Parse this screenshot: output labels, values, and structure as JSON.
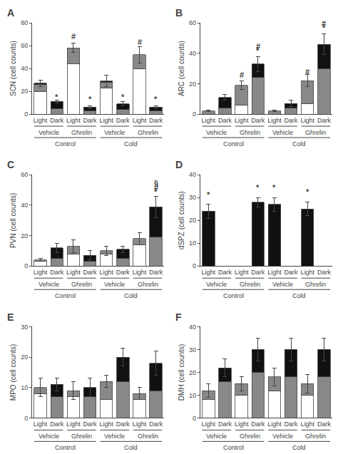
{
  "chart_data": [
    {
      "type": "bar",
      "stacked": true,
      "title": "A",
      "ylabel": "SCN (cell counts)",
      "categories": [
        "Light",
        "Dark",
        "Light",
        "Dark",
        "Light",
        "Dark",
        "Light",
        "Dark"
      ],
      "series": [
        {
          "color": "#ffffff",
          "values": [
            20,
            0,
            44,
            0,
            23,
            0,
            40,
            0
          ]
        },
        {
          "color": "#888888",
          "values": [
            6,
            5,
            14,
            3,
            5,
            4,
            12,
            3
          ]
        },
        {
          "color": "#111111",
          "values": [
            1,
            6,
            0,
            3,
            1,
            5,
            0,
            3
          ]
        }
      ],
      "errors": [
        3,
        1.5,
        4,
        1,
        5,
        2,
        7,
        1
      ],
      "ylim": [
        0,
        80
      ],
      "yticks": [
        0,
        20,
        40,
        60,
        80
      ],
      "grid": false,
      "annotations": [
        {
          "text": "#",
          "x": 2,
          "y": 63
        },
        {
          "text": "*",
          "x": 1,
          "y": 10
        },
        {
          "text": "*",
          "x": 3,
          "y": 8
        },
        {
          "text": "#",
          "x": 6,
          "y": 58
        },
        {
          "text": "*",
          "x": 5,
          "y": 10
        },
        {
          "text": "*",
          "x": 7,
          "y": 8
        },
        {
          "text": "Vehicle",
          "x": [
            0,
            1
          ]
        },
        {
          "text": "Ghrelin",
          "x": [
            2,
            3
          ]
        },
        {
          "text": "Vehicle",
          "x": [
            4,
            5
          ]
        },
        {
          "text": "Ghrelin",
          "x": [
            6,
            7
          ]
        },
        {
          "text": "Control",
          "x": [
            0,
            3
          ]
        },
        {
          "text": "Cold",
          "x": [
            4,
            7
          ]
        }
      ]
    },
    {
      "type": "bar",
      "stacked": true,
      "title": "B",
      "ylabel": "ARC (cell counts)",
      "categories": [
        "Light",
        "Dark",
        "Light",
        "Dark",
        "Light",
        "Dark",
        "Light",
        "Dark"
      ],
      "series": [
        {
          "color": "#ffffff",
          "values": [
            0,
            0,
            6,
            0,
            0,
            0,
            7,
            0
          ]
        },
        {
          "color": "#888888",
          "values": [
            2,
            4,
            13,
            24,
            2,
            4,
            15,
            30
          ]
        },
        {
          "color": "#111111",
          "values": [
            0,
            7,
            0,
            9,
            0,
            3,
            0,
            16
          ]
        }
      ],
      "errors": [
        0.5,
        2,
        3,
        5,
        0.5,
        2,
        4,
        7
      ],
      "ylim": [
        0,
        60
      ],
      "yticks": [
        0,
        20,
        40,
        60
      ],
      "grid": false,
      "annotations": [
        {
          "text": "#",
          "x": 2,
          "y": 22
        },
        {
          "text": "#",
          "x": 3,
          "y": 41
        },
        {
          "text": "*",
          "x": 3,
          "y": 38
        },
        {
          "text": "#",
          "x": 6,
          "y": 24
        },
        {
          "text": "#",
          "x": 7,
          "y": 56
        },
        {
          "text": "*",
          "x": 7,
          "y": 53
        },
        {
          "text": "Vehicle",
          "x": [
            0,
            1
          ]
        },
        {
          "text": "Ghrelin",
          "x": [
            2,
            3
          ]
        },
        {
          "text": "Vehicle",
          "x": [
            4,
            5
          ]
        },
        {
          "text": "Ghrelin",
          "x": [
            6,
            7
          ]
        },
        {
          "text": "Control",
          "x": [
            0,
            3
          ]
        },
        {
          "text": "Cold",
          "x": [
            4,
            7
          ]
        }
      ]
    },
    {
      "type": "bar",
      "stacked": true,
      "title": "C",
      "ylabel": "PVN (cell counts)",
      "categories": [
        "Light",
        "Dark",
        "Light",
        "Dark",
        "Light",
        "Dark",
        "Light",
        "Dark"
      ],
      "series": [
        {
          "color": "#ffffff",
          "values": [
            3,
            0,
            8,
            0,
            8,
            0,
            14,
            0
          ]
        },
        {
          "color": "#888888",
          "values": [
            1,
            5,
            5,
            3,
            2,
            5,
            4,
            19
          ]
        },
        {
          "color": "#111111",
          "values": [
            0,
            7,
            0,
            4,
            0,
            6,
            0,
            20
          ]
        }
      ],
      "errors": [
        1,
        3,
        4,
        3,
        3,
        2,
        4,
        7
      ],
      "ylim": [
        0,
        60
      ],
      "yticks": [
        0,
        20,
        40,
        60
      ],
      "grid": false,
      "annotations": [
        {
          "text": "§",
          "x": 7,
          "y": 51
        },
        {
          "text": "#",
          "x": 7,
          "y": 48
        },
        {
          "text": "*",
          "x": 7,
          "y": 45
        },
        {
          "text": "Vehicle",
          "x": [
            0,
            1
          ]
        },
        {
          "text": "Ghrelin",
          "x": [
            2,
            3
          ]
        },
        {
          "text": "Vehicle",
          "x": [
            4,
            5
          ]
        },
        {
          "text": "Ghrelin",
          "x": [
            6,
            7
          ]
        },
        {
          "text": "Control",
          "x": [
            0,
            3
          ]
        },
        {
          "text": "Cold",
          "x": [
            4,
            7
          ]
        }
      ]
    },
    {
      "type": "bar",
      "stacked": true,
      "title": "D",
      "ylabel": "dSPZ (cell counts)",
      "categories": [
        "Light",
        "Dark",
        "Light",
        "Dark",
        "Light",
        "Dark",
        "Light",
        "Dark"
      ],
      "series": [
        {
          "color": "#ffffff",
          "values": [
            0,
            0,
            0,
            0,
            0,
            0,
            0,
            0
          ]
        },
        {
          "color": "#888888",
          "values": [
            0,
            0,
            0,
            0,
            0,
            0,
            0,
            0
          ]
        },
        {
          "color": "#111111",
          "values": [
            24,
            0,
            0,
            28,
            27,
            0,
            25,
            0
          ]
        }
      ],
      "errors": [
        3,
        0,
        0,
        2,
        3,
        0,
        3,
        0
      ],
      "ylim": [
        0,
        40
      ],
      "yticks": [
        0,
        10,
        20,
        30,
        40
      ],
      "grid": false,
      "annotations": [
        {
          "text": "*",
          "x": 0,
          "y": 29
        },
        {
          "text": "*",
          "x": 3,
          "y": 32
        },
        {
          "text": "*",
          "x": 4,
          "y": 32
        },
        {
          "text": "*",
          "x": 6,
          "y": 30
        },
        {
          "text": "Vehicle",
          "x": [
            0,
            1
          ]
        },
        {
          "text": "Ghrelin",
          "x": [
            2,
            3
          ]
        },
        {
          "text": "Vehicle",
          "x": [
            4,
            5
          ]
        },
        {
          "text": "Ghrelin",
          "x": [
            6,
            7
          ]
        },
        {
          "text": "Control",
          "x": [
            0,
            3
          ]
        },
        {
          "text": "Cold",
          "x": [
            4,
            7
          ]
        }
      ]
    },
    {
      "type": "bar",
      "stacked": true,
      "title": "E",
      "ylabel": "MPO (cell counts)",
      "categories": [
        "Light",
        "Dark",
        "Light",
        "Dark",
        "Light",
        "Dark",
        "Light",
        "Dark"
      ],
      "series": [
        {
          "color": "#ffffff",
          "values": [
            8,
            0,
            7,
            0,
            6,
            0,
            6,
            0
          ]
        },
        {
          "color": "#888888",
          "values": [
            2,
            7,
            2,
            7,
            6,
            12,
            2,
            9
          ]
        },
        {
          "color": "#111111",
          "values": [
            0,
            4,
            0,
            3,
            0,
            8,
            0,
            9
          ]
        }
      ],
      "errors": [
        3,
        2,
        3,
        3,
        2,
        3,
        2,
        4
      ],
      "ylim": [
        0,
        30
      ],
      "yticks": [
        0,
        10,
        20,
        30
      ],
      "grid": false,
      "annotations": [
        {
          "text": "Vehicle",
          "x": [
            0,
            1
          ]
        },
        {
          "text": "Ghrelin",
          "x": [
            2,
            3
          ]
        },
        {
          "text": "Vehicle",
          "x": [
            4,
            5
          ]
        },
        {
          "text": "Ghrelin",
          "x": [
            6,
            7
          ]
        },
        {
          "text": "Control",
          "x": [
            0,
            3
          ]
        },
        {
          "text": "Cold",
          "x": [
            4,
            7
          ]
        }
      ]
    },
    {
      "type": "bar",
      "stacked": true,
      "title": "F",
      "ylabel": "DMH (cell counts)",
      "categories": [
        "Light",
        "Dark",
        "Light",
        "Dark",
        "Light",
        "Dark",
        "Light",
        "Dark"
      ],
      "series": [
        {
          "color": "#ffffff",
          "values": [
            8,
            0,
            10,
            0,
            12,
            0,
            10,
            0
          ]
        },
        {
          "color": "#888888",
          "values": [
            4,
            16,
            5,
            20,
            6,
            18,
            5,
            18
          ]
        },
        {
          "color": "#111111",
          "values": [
            0,
            6,
            0,
            10,
            0,
            12,
            0,
            12
          ]
        }
      ],
      "errors": [
        3,
        4,
        3,
        5,
        4,
        5,
        4,
        5
      ],
      "ylim": [
        0,
        40
      ],
      "yticks": [
        0,
        10,
        20,
        30,
        40
      ],
      "grid": false,
      "annotations": [
        {
          "text": "Vehicle",
          "x": [
            0,
            1
          ]
        },
        {
          "text": "Ghrelin",
          "x": [
            2,
            3
          ]
        },
        {
          "text": "Vehicle",
          "x": [
            4,
            5
          ]
        },
        {
          "text": "Ghrelin",
          "x": [
            6,
            7
          ]
        },
        {
          "text": "Control",
          "x": [
            0,
            3
          ]
        },
        {
          "text": "Cold",
          "x": [
            4,
            7
          ]
        }
      ]
    }
  ]
}
